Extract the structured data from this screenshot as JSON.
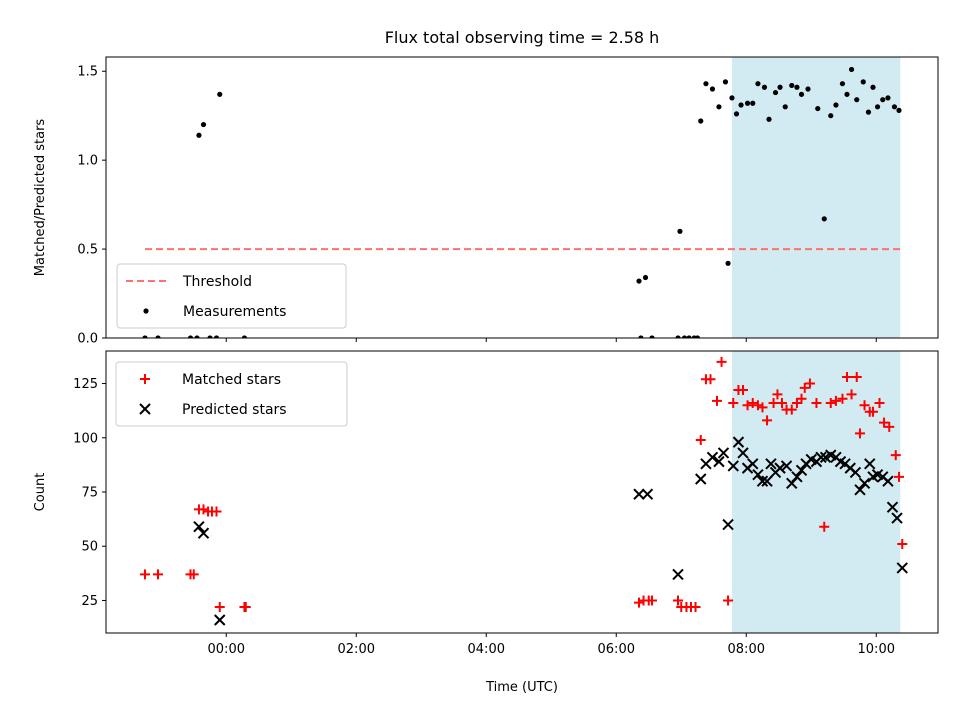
{
  "chart_data": {
    "title": "Flux total observing time = 2.58 h",
    "xlabel": "Time (UTC)",
    "x_unit": "hours relative to 00:00 UTC",
    "xlim": [
      -1.85,
      10.95
    ],
    "xticks": [
      {
        "value": 0,
        "label": "00:00"
      },
      {
        "value": 2,
        "label": "02:00"
      },
      {
        "value": 4,
        "label": "04:00"
      },
      {
        "value": 6,
        "label": "06:00"
      },
      {
        "value": 8,
        "label": "08:00"
      },
      {
        "value": 10,
        "label": "10:00"
      }
    ],
    "highlight_span": {
      "start": 7.78,
      "end": 10.37,
      "color": "#add8e6"
    },
    "panels": [
      {
        "type": "scatter",
        "ylabel": "Matched/Predicted stars",
        "ylim": [
          0,
          1.58
        ],
        "yticks": [
          {
            "value": 0,
            "label": "0.0"
          },
          {
            "value": 0.5,
            "label": "0.5"
          },
          {
            "value": 1.0,
            "label": "1.0"
          },
          {
            "value": 1.5,
            "label": "1.5"
          }
        ],
        "legend": {
          "position": "lower-left",
          "entries": [
            "Threshold",
            "Measurements"
          ]
        },
        "threshold": {
          "name": "Threshold",
          "value": 0.5,
          "x_start": -1.25,
          "x_end": 10.37,
          "color": "#ff7070"
        },
        "series": [
          {
            "name": "Measurements",
            "marker": "dot",
            "color": "#000000",
            "points": [
              [
                -1.25,
                0.0
              ],
              [
                -1.05,
                0.0
              ],
              [
                -0.55,
                0.0
              ],
              [
                -0.45,
                0.0
              ],
              [
                -0.42,
                1.14
              ],
              [
                -0.35,
                1.2
              ],
              [
                -0.25,
                0.0
              ],
              [
                -0.15,
                0.0
              ],
              [
                -0.1,
                1.37
              ],
              [
                0.28,
                0.0
              ],
              [
                6.35,
                0.32
              ],
              [
                6.38,
                0.0
              ],
              [
                6.45,
                0.34
              ],
              [
                6.55,
                0.0
              ],
              [
                6.95,
                0.0
              ],
              [
                6.98,
                0.6
              ],
              [
                7.05,
                0.0
              ],
              [
                7.12,
                0.0
              ],
              [
                7.2,
                0.0
              ],
              [
                7.25,
                0.0
              ],
              [
                7.3,
                1.22
              ],
              [
                7.38,
                1.43
              ],
              [
                7.48,
                1.4
              ],
              [
                7.58,
                1.3
              ],
              [
                7.68,
                1.44
              ],
              [
                7.72,
                0.42
              ],
              [
                7.78,
                1.35
              ],
              [
                7.85,
                1.26
              ],
              [
                7.92,
                1.31
              ],
              [
                8.02,
                1.32
              ],
              [
                8.1,
                1.32
              ],
              [
                8.18,
                1.43
              ],
              [
                8.28,
                1.41
              ],
              [
                8.35,
                1.23
              ],
              [
                8.45,
                1.38
              ],
              [
                8.52,
                1.41
              ],
              [
                8.6,
                1.3
              ],
              [
                8.7,
                1.42
              ],
              [
                8.78,
                1.41
              ],
              [
                8.85,
                1.37
              ],
              [
                8.95,
                1.4
              ],
              [
                9.1,
                1.29
              ],
              [
                9.2,
                0.67
              ],
              [
                9.3,
                1.25
              ],
              [
                9.38,
                1.31
              ],
              [
                9.48,
                1.43
              ],
              [
                9.55,
                1.37
              ],
              [
                9.62,
                1.51
              ],
              [
                9.7,
                1.34
              ],
              [
                9.8,
                1.44
              ],
              [
                9.88,
                1.27
              ],
              [
                9.95,
                1.41
              ],
              [
                10.02,
                1.3
              ],
              [
                10.1,
                1.34
              ],
              [
                10.18,
                1.35
              ],
              [
                10.28,
                1.3
              ],
              [
                10.35,
                1.28
              ]
            ]
          }
        ]
      },
      {
        "type": "scatter",
        "ylabel": "Count",
        "ylim": [
          10,
          140
        ],
        "yticks": [
          {
            "value": 25,
            "label": "25"
          },
          {
            "value": 50,
            "label": "50"
          },
          {
            "value": 75,
            "label": "75"
          },
          {
            "value": 100,
            "label": "100"
          },
          {
            "value": 125,
            "label": "125"
          }
        ],
        "legend": {
          "position": "top-left",
          "entries": [
            "Matched stars",
            "Predicted stars"
          ]
        },
        "series": [
          {
            "name": "Matched stars",
            "marker": "plus",
            "color": "#ff0000",
            "points": [
              [
                -1.25,
                37
              ],
              [
                -1.05,
                37
              ],
              [
                -0.55,
                37
              ],
              [
                -0.5,
                37
              ],
              [
                -0.42,
                67
              ],
              [
                -0.35,
                67
              ],
              [
                -0.28,
                66
              ],
              [
                -0.22,
                66
              ],
              [
                -0.15,
                66
              ],
              [
                -0.1,
                22
              ],
              [
                0.28,
                22
              ],
              [
                0.3,
                22
              ],
              [
                6.35,
                24
              ],
              [
                6.42,
                25
              ],
              [
                6.5,
                25
              ],
              [
                6.55,
                25
              ],
              [
                6.95,
                25
              ],
              [
                7.0,
                22
              ],
              [
                7.08,
                22
              ],
              [
                7.15,
                22
              ],
              [
                7.22,
                22
              ],
              [
                7.3,
                99
              ],
              [
                7.38,
                127
              ],
              [
                7.45,
                127
              ],
              [
                7.55,
                117
              ],
              [
                7.62,
                135
              ],
              [
                7.72,
                25
              ],
              [
                7.8,
                116
              ],
              [
                7.88,
                122
              ],
              [
                7.95,
                122
              ],
              [
                8.02,
                115
              ],
              [
                8.1,
                116
              ],
              [
                8.18,
                115
              ],
              [
                8.25,
                114
              ],
              [
                8.32,
                108
              ],
              [
                8.42,
                116
              ],
              [
                8.48,
                120
              ],
              [
                8.55,
                116
              ],
              [
                8.62,
                113
              ],
              [
                8.7,
                113
              ],
              [
                8.78,
                116
              ],
              [
                8.85,
                118
              ],
              [
                8.9,
                123
              ],
              [
                8.98,
                125
              ],
              [
                9.08,
                116
              ],
              [
                9.2,
                59
              ],
              [
                9.3,
                116
              ],
              [
                9.38,
                117
              ],
              [
                9.48,
                118
              ],
              [
                9.55,
                128
              ],
              [
                9.62,
                120
              ],
              [
                9.7,
                128
              ],
              [
                9.75,
                102
              ],
              [
                9.82,
                115
              ],
              [
                9.9,
                112
              ],
              [
                9.95,
                112
              ],
              [
                10.05,
                116
              ],
              [
                10.12,
                107
              ],
              [
                10.2,
                105
              ],
              [
                10.3,
                92
              ],
              [
                10.35,
                82
              ],
              [
                10.4,
                51
              ]
            ]
          },
          {
            "name": "Predicted stars",
            "marker": "x",
            "color": "#000000",
            "points": [
              [
                -0.42,
                59
              ],
              [
                -0.35,
                56
              ],
              [
                -0.1,
                16
              ],
              [
                6.35,
                74
              ],
              [
                6.48,
                74
              ],
              [
                6.95,
                37
              ],
              [
                7.3,
                81
              ],
              [
                7.38,
                88
              ],
              [
                7.48,
                91
              ],
              [
                7.58,
                89
              ],
              [
                7.65,
                93
              ],
              [
                7.72,
                60
              ],
              [
                7.8,
                87
              ],
              [
                7.88,
                98
              ],
              [
                7.95,
                93
              ],
              [
                8.02,
                86
              ],
              [
                8.1,
                88
              ],
              [
                8.18,
                83
              ],
              [
                8.25,
                80
              ],
              [
                8.32,
                80
              ],
              [
                8.38,
                88
              ],
              [
                8.45,
                84
              ],
              [
                8.52,
                86
              ],
              [
                8.62,
                87
              ],
              [
                8.7,
                79
              ],
              [
                8.78,
                82
              ],
              [
                8.85,
                85
              ],
              [
                8.92,
                88
              ],
              [
                9.0,
                90
              ],
              [
                9.08,
                89
              ],
              [
                9.15,
                91
              ],
              [
                9.22,
                91
              ],
              [
                9.3,
                92
              ],
              [
                9.38,
                91
              ],
              [
                9.45,
                89
              ],
              [
                9.52,
                88
              ],
              [
                9.6,
                86
              ],
              [
                9.68,
                84
              ],
              [
                9.75,
                76
              ],
              [
                9.82,
                79
              ],
              [
                9.9,
                88
              ],
              [
                9.95,
                82
              ],
              [
                10.02,
                83
              ],
              [
                10.1,
                82
              ],
              [
                10.18,
                80
              ],
              [
                10.25,
                68
              ],
              [
                10.32,
                63
              ],
              [
                10.4,
                40
              ]
            ]
          }
        ]
      }
    ]
  }
}
